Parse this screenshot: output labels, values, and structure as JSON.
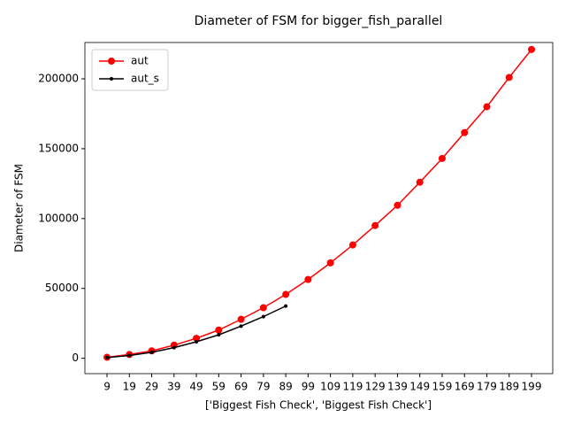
{
  "chart_data": {
    "type": "line",
    "title": "Diameter of FSM for bigger_fish_parallel",
    "xlabel": "['Biggest Fish Check', 'Biggest Fish Check']",
    "ylabel": "Diameter of FSM",
    "x": [
      9,
      19,
      29,
      39,
      49,
      59,
      69,
      79,
      89,
      99,
      109,
      119,
      129,
      139,
      149,
      159,
      169,
      179,
      189,
      199
    ],
    "series": [
      {
        "name": "aut",
        "color": "#ff0000",
        "marker": "circle",
        "values": [
          700,
          2700,
          5300,
          9400,
          14300,
          20200,
          27900,
          36200,
          45700,
          56400,
          68300,
          81100,
          95000,
          109500,
          126000,
          143000,
          161500,
          180000,
          201000,
          221000
        ]
      },
      {
        "name": "aut_s",
        "color": "#000000",
        "marker": "dot",
        "values": [
          500,
          2000,
          4300,
          7600,
          11800,
          16800,
          23000,
          29800,
          37400,
          null,
          null,
          null,
          null,
          null,
          null,
          null,
          null,
          null,
          null,
          null
        ]
      }
    ],
    "xlim": [
      -0.9,
      208.5
    ],
    "xticks": [
      9,
      19,
      29,
      39,
      49,
      59,
      69,
      79,
      89,
      99,
      109,
      119,
      129,
      139,
      149,
      159,
      169,
      179,
      189,
      199
    ],
    "ylim": [
      -11000,
      226000
    ],
    "yticks": [
      0,
      50000,
      100000,
      150000,
      200000
    ],
    "legend": "upper left"
  }
}
